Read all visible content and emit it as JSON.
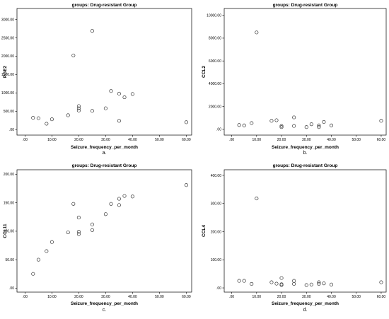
{
  "chart_data": [
    {
      "type": "scatter",
      "panel_label": "a.",
      "title": "groups: Drug-resistant Group",
      "xlabel": "Seizure_frequency_per_month",
      "ylabel": "PGE2",
      "xlim": [
        -3,
        62
      ],
      "ylim": [
        -150,
        3300
      ],
      "x_ticks": [
        ".00",
        "10.00",
        "20.00",
        "30.00",
        "40.00",
        "50.00",
        "60.00"
      ],
      "x_tick_values": [
        0,
        10,
        20,
        30,
        40,
        50,
        60
      ],
      "y_ticks": [
        ".00",
        "500.00",
        "1000.00",
        "1500.00",
        "2000.00",
        "2500.00",
        "3000.00"
      ],
      "y_tick_values": [
        0,
        500,
        1000,
        1500,
        2000,
        2500,
        3000
      ],
      "grid": false,
      "marker": "open-circle",
      "points": [
        {
          "x": 3,
          "y": 320
        },
        {
          "x": 5,
          "y": 310
        },
        {
          "x": 8,
          "y": 160
        },
        {
          "x": 10,
          "y": 280
        },
        {
          "x": 16,
          "y": 390
        },
        {
          "x": 18,
          "y": 2020
        },
        {
          "x": 20,
          "y": 520
        },
        {
          "x": 20,
          "y": 580
        },
        {
          "x": 20,
          "y": 640
        },
        {
          "x": 25,
          "y": 2690
        },
        {
          "x": 25,
          "y": 510
        },
        {
          "x": 30,
          "y": 580
        },
        {
          "x": 32,
          "y": 1050
        },
        {
          "x": 35,
          "y": 980
        },
        {
          "x": 35,
          "y": 240
        },
        {
          "x": 37,
          "y": 880
        },
        {
          "x": 40,
          "y": 970
        },
        {
          "x": 60,
          "y": 200
        }
      ]
    },
    {
      "type": "scatter",
      "panel_label": "b.",
      "title": "groups: Drug-resistant Group",
      "xlabel": "Seizure_frequency_per_month",
      "ylabel": "CCL2",
      "xlim": [
        -3,
        62
      ],
      "ylim": [
        -500,
        10600
      ],
      "x_ticks": [
        ".00",
        "10.00",
        "20.00",
        "30.00",
        "40.00",
        "50.00",
        "60.00"
      ],
      "x_tick_values": [
        0,
        10,
        20,
        30,
        40,
        50,
        60
      ],
      "y_ticks": [
        ".00",
        "2000.00",
        "4000.00",
        "6000.00",
        "8000.00",
        "10000.00"
      ],
      "y_tick_values": [
        0,
        2000,
        4000,
        6000,
        8000,
        10000
      ],
      "grid": false,
      "marker": "open-circle",
      "points": [
        {
          "x": 3,
          "y": 380
        },
        {
          "x": 5,
          "y": 350
        },
        {
          "x": 8,
          "y": 550
        },
        {
          "x": 10,
          "y": 8500
        },
        {
          "x": 16,
          "y": 750
        },
        {
          "x": 18,
          "y": 800
        },
        {
          "x": 20,
          "y": 300
        },
        {
          "x": 20,
          "y": 200
        },
        {
          "x": 25,
          "y": 1050
        },
        {
          "x": 25,
          "y": 300
        },
        {
          "x": 30,
          "y": 200
        },
        {
          "x": 32,
          "y": 450
        },
        {
          "x": 35,
          "y": 200
        },
        {
          "x": 35,
          "y": 350
        },
        {
          "x": 37,
          "y": 650
        },
        {
          "x": 40,
          "y": 350
        },
        {
          "x": 60,
          "y": 750
        }
      ]
    },
    {
      "type": "scatter",
      "panel_label": "c.",
      "title": "groups: Drug-resistant Group",
      "xlabel": "Seizure_frequency_per_month",
      "ylabel": "CCL11",
      "xlim": [
        -3,
        62
      ],
      "ylim": [
        -7,
        208
      ],
      "x_ticks": [
        ".00",
        "10.00",
        "20.00",
        "30.00",
        "40.00",
        "50.00",
        "60.00"
      ],
      "x_tick_values": [
        0,
        10,
        20,
        30,
        40,
        50,
        60
      ],
      "y_ticks": [
        ".00",
        "50.00",
        "100.00",
        "150.00",
        "200.00"
      ],
      "y_tick_values": [
        0,
        50,
        100,
        150,
        200
      ],
      "grid": false,
      "marker": "open-circle",
      "points": [
        {
          "x": 3,
          "y": 25
        },
        {
          "x": 5,
          "y": 50
        },
        {
          "x": 8,
          "y": 65
        },
        {
          "x": 10,
          "y": 81
        },
        {
          "x": 16,
          "y": 98
        },
        {
          "x": 18,
          "y": 148
        },
        {
          "x": 20,
          "y": 95
        },
        {
          "x": 20,
          "y": 99
        },
        {
          "x": 20,
          "y": 124
        },
        {
          "x": 25,
          "y": 112
        },
        {
          "x": 25,
          "y": 102
        },
        {
          "x": 30,
          "y": 130
        },
        {
          "x": 32,
          "y": 148
        },
        {
          "x": 35,
          "y": 157
        },
        {
          "x": 35,
          "y": 146
        },
        {
          "x": 37,
          "y": 162
        },
        {
          "x": 40,
          "y": 161
        },
        {
          "x": 60,
          "y": 181
        }
      ]
    },
    {
      "type": "scatter",
      "panel_label": "d.",
      "title": "groups: Drug-resistant Group",
      "xlabel": "Seizure_frequency_per_month",
      "ylabel": "CCL4",
      "xlim": [
        -3,
        62
      ],
      "ylim": [
        -15,
        420
      ],
      "x_ticks": [
        ".00",
        "10.00",
        "20.00",
        "30.00",
        "40.00",
        "50.00",
        "60.00"
      ],
      "x_tick_values": [
        0,
        10,
        20,
        30,
        40,
        50,
        60
      ],
      "y_ticks": [
        ".00",
        "100.00",
        "200.00",
        "300.00",
        "400.00"
      ],
      "y_tick_values": [
        0,
        100,
        200,
        300,
        400
      ],
      "grid": false,
      "marker": "open-circle",
      "points": [
        {
          "x": 3,
          "y": 25
        },
        {
          "x": 5,
          "y": 25
        },
        {
          "x": 8,
          "y": 14
        },
        {
          "x": 10,
          "y": 318
        },
        {
          "x": 16,
          "y": 20
        },
        {
          "x": 18,
          "y": 15
        },
        {
          "x": 20,
          "y": 10
        },
        {
          "x": 20,
          "y": 13
        },
        {
          "x": 20,
          "y": 35
        },
        {
          "x": 25,
          "y": 25
        },
        {
          "x": 25,
          "y": 14
        },
        {
          "x": 30,
          "y": 10
        },
        {
          "x": 32,
          "y": 12
        },
        {
          "x": 35,
          "y": 20
        },
        {
          "x": 35,
          "y": 14
        },
        {
          "x": 37,
          "y": 16
        },
        {
          "x": 40,
          "y": 12
        },
        {
          "x": 60,
          "y": 20
        }
      ]
    }
  ]
}
